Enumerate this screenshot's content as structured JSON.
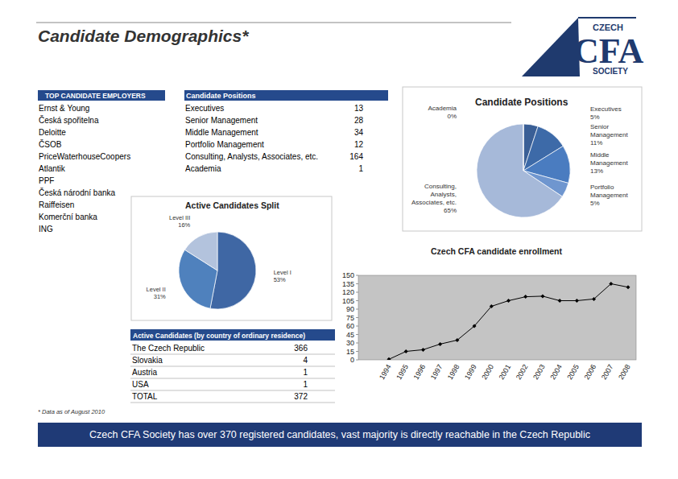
{
  "header": {
    "title": "Candidate Demographics*"
  },
  "logo": {
    "lines": [
      "CZECH",
      "CFA",
      "SOCIETY"
    ]
  },
  "tables": {
    "employers": {
      "header": "TOP CANDIDATE EMPLOYERS",
      "rows": [
        "Ernst & Young",
        "Česká spořitelna",
        "Deloitte",
        "ČSOB",
        "PriceWaterhouseCoopers",
        "Atlantik",
        "PPF",
        "Česká národní banka",
        "Raiffeisen",
        "Komerční banka",
        "ING"
      ]
    },
    "positions": {
      "header": "Candidate Positions",
      "rows": [
        [
          "Executives",
          13
        ],
        [
          "Senior Management",
          28
        ],
        [
          "Middle Management",
          34
        ],
        [
          "Portfolio Management",
          12
        ],
        [
          "Consulting, Analysts, Associates, etc.",
          164
        ],
        [
          "Academia",
          1
        ]
      ]
    },
    "residence": {
      "header": "Active Candidates (by country of ordinary residence)",
      "rows": [
        [
          "The Czech Republic",
          366
        ],
        [
          "Slovakia",
          4
        ],
        [
          "Austria",
          1
        ],
        [
          "USA",
          1
        ],
        [
          "TOTAL",
          372
        ]
      ]
    }
  },
  "chart_data": [
    {
      "type": "pie",
      "title": "Candidate Positions",
      "categories": [
        "Executives",
        "Senior Management",
        "Middle Management",
        "Portfolio Management",
        "Consulting, Analysts, Associates, etc.",
        "Academia"
      ],
      "values": [
        5,
        11,
        13,
        5,
        65,
        0
      ],
      "value_labels": [
        "5%",
        "11%",
        "13%",
        "5%",
        "65%",
        "0%"
      ],
      "colors": [
        "#3a5f96",
        "#3d6aa8",
        "#4a7cc0",
        "#6f96cf",
        "#a6b9d9",
        "#2f4a7a"
      ],
      "data_labels": true
    },
    {
      "type": "pie",
      "title": "Active Candidates Split",
      "categories": [
        "Level I",
        "Level II",
        "Level III"
      ],
      "values": [
        53,
        31,
        16
      ],
      "value_labels": [
        "53%",
        "31%",
        "16%"
      ],
      "colors": [
        "#3f67a4",
        "#4f81bd",
        "#b3c3dd"
      ],
      "data_labels": true
    },
    {
      "type": "line",
      "title": "Czech CFA candidate enrollment",
      "categories": [
        "1994",
        "1995",
        "1996",
        "1997",
        "1998",
        "1999",
        "2000",
        "2001",
        "2002",
        "2003",
        "2004",
        "2005",
        "2006",
        "2007",
        "2008"
      ],
      "values": [
        1,
        15,
        18,
        28,
        35,
        60,
        95,
        105,
        112,
        113,
        105,
        105,
        108,
        135,
        129
      ],
      "ylim": [
        0,
        150
      ],
      "yticks": [
        0,
        15,
        30,
        45,
        60,
        75,
        90,
        105,
        120,
        135,
        150
      ],
      "color": "#000000",
      "marker": "diamond",
      "grid": false
    }
  ],
  "footnote": "* Data as of August 2010",
  "banner": "Czech CFA Society has over 370 registered candidates, vast majority is directly reachable in the Czech Republic"
}
